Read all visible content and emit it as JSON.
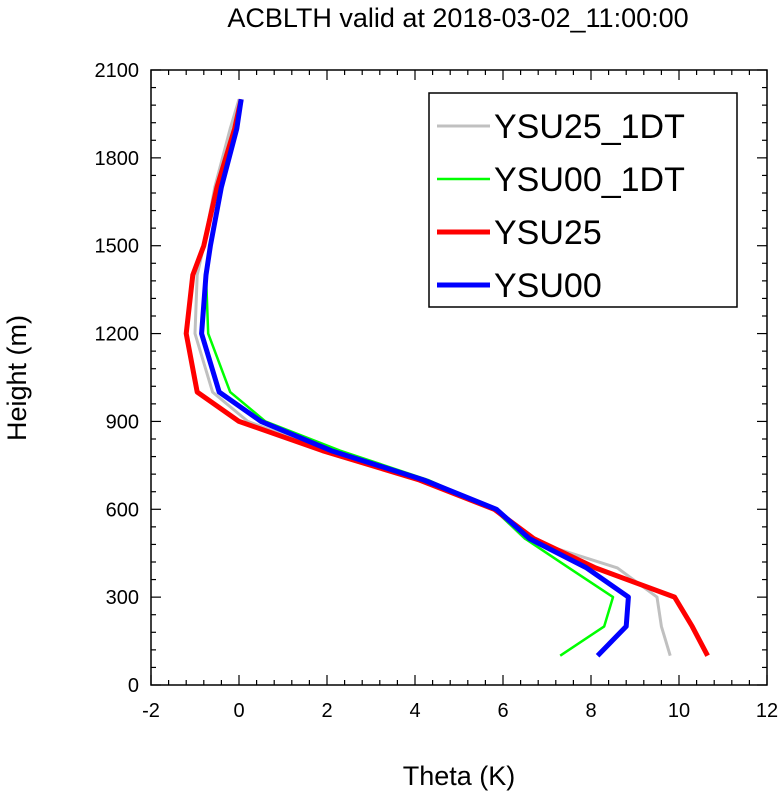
{
  "chart_data": {
    "type": "line",
    "title": "ACBLTH valid at 2018-03-02_11:00:00",
    "xlabel": "Theta (K)",
    "ylabel": "Height (m)",
    "xlim": [
      -2,
      12
    ],
    "ylim": [
      0,
      2100
    ],
    "xticks": [
      -2,
      0,
      2,
      4,
      6,
      8,
      10,
      12
    ],
    "yticks": [
      0,
      300,
      600,
      900,
      1200,
      1500,
      1800,
      2100
    ],
    "xtick_labels": [
      "-2",
      "0",
      "2",
      "4",
      "6",
      "8",
      "10",
      "12"
    ],
    "ytick_labels": [
      "0",
      "300",
      "600",
      "900",
      "1200",
      "1500",
      "1800",
      "2100"
    ],
    "legend_position": "top-right",
    "series": [
      {
        "name": "YSU25_1DT",
        "color": "#c0c0c0",
        "x": [
          9.8,
          9.6,
          9.5,
          8.6,
          6.5,
          5.8,
          4.2,
          2.0,
          0.2,
          -0.6,
          -1.0,
          -0.95,
          -0.8,
          -0.55,
          -0.2,
          0.0
        ],
        "y": [
          100,
          200,
          300,
          400,
          500,
          600,
          700,
          800,
          900,
          1000,
          1200,
          1400,
          1500,
          1700,
          1900,
          2000
        ]
      },
      {
        "name": "YSU00_1DT",
        "color": "#00ff00",
        "x": [
          7.3,
          8.3,
          8.5,
          7.5,
          6.5,
          5.8,
          4.3,
          2.3,
          0.6,
          -0.2,
          -0.7,
          -0.75,
          -0.65,
          -0.4,
          -0.1,
          0.05
        ],
        "y": [
          100,
          200,
          300,
          400,
          500,
          600,
          700,
          800,
          900,
          1000,
          1200,
          1400,
          1500,
          1700,
          1900,
          2000
        ]
      },
      {
        "name": "YSU25",
        "color": "#ff0000",
        "x": [
          10.65,
          10.3,
          9.9,
          8.1,
          6.7,
          5.8,
          4.1,
          1.9,
          0.0,
          -0.95,
          -1.2,
          -1.05,
          -0.8,
          -0.5,
          -0.1,
          0.05
        ],
        "y": [
          100,
          200,
          300,
          400,
          500,
          600,
          700,
          800,
          900,
          1000,
          1200,
          1400,
          1500,
          1700,
          1900,
          2000
        ]
      },
      {
        "name": "YSU00",
        "color": "#0000ff",
        "x": [
          8.15,
          8.8,
          8.85,
          7.9,
          6.6,
          5.85,
          4.2,
          2.1,
          0.5,
          -0.45,
          -0.85,
          -0.75,
          -0.65,
          -0.4,
          -0.05,
          0.05
        ],
        "y": [
          100,
          200,
          300,
          400,
          500,
          600,
          700,
          800,
          900,
          1000,
          1200,
          1400,
          1500,
          1700,
          1900,
          2000
        ]
      }
    ]
  }
}
